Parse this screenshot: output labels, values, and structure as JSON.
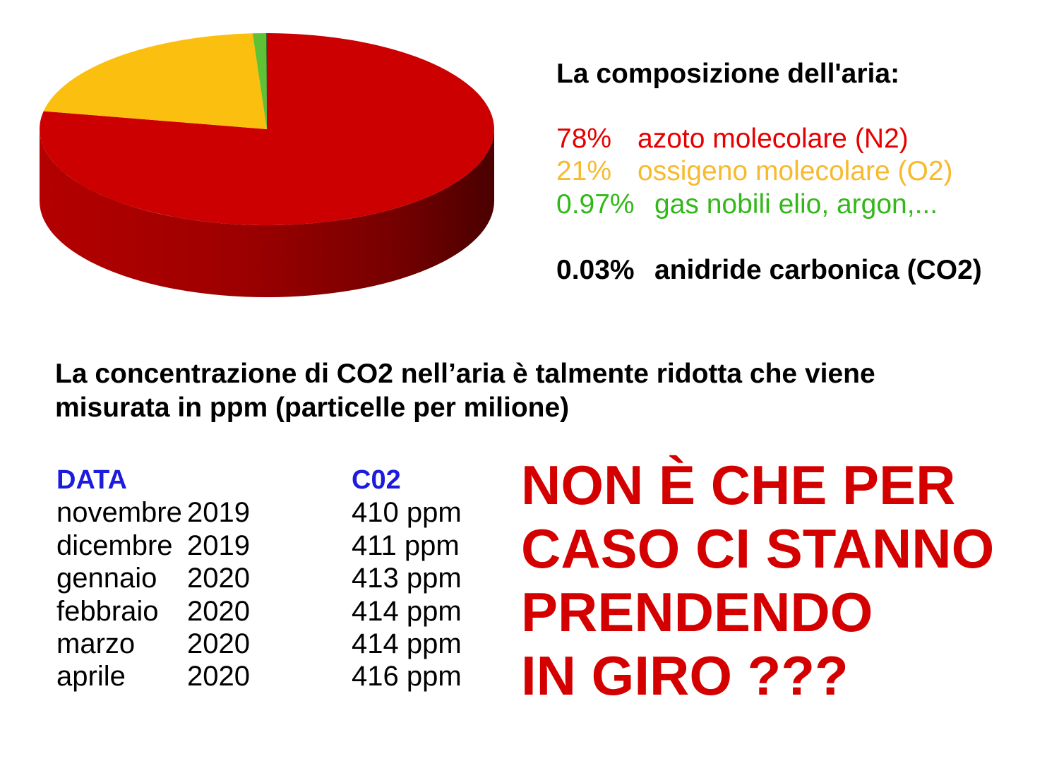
{
  "chart_data": {
    "type": "pie",
    "variant": "3d",
    "title": "La composizione dell'aria:",
    "categories": [
      "azoto molecolare (N2)",
      "ossigeno molecolare (O2)",
      "gas nobili elio, argon,...",
      "anidride carbonica (CO2)"
    ],
    "values": [
      78,
      21,
      0.97,
      0.03
    ],
    "value_labels": [
      "78%",
      "21%",
      "0.97%",
      "0.03%"
    ],
    "colors": [
      "#cc0000",
      "#fbbf10",
      "#5ec234",
      "#1a1a1a"
    ],
    "legend_colors": [
      "#e60000",
      "#f7b92e",
      "#33b81a",
      "#000000"
    ],
    "legend_position": "right"
  },
  "intro": {
    "lines": [
      "La concentrazione di CO2 nell’aria è talmente ridotta che viene",
      "misurata in ppm (particelle per milione)"
    ]
  },
  "co2_table": {
    "header_color": "#1c1cdc",
    "headers": {
      "date": "DATA",
      "value": "C02"
    },
    "rows": [
      {
        "month": "novembre",
        "year": "2019",
        "value": "410 ppm"
      },
      {
        "month": "dicembre",
        "year": "2019",
        "value": "411 ppm"
      },
      {
        "month": "gennaio",
        "year": "2020",
        "value": "413 ppm"
      },
      {
        "month": "febbraio",
        "year": "2020",
        "value": "414 ppm"
      },
      {
        "month": "marzo",
        "year": "2020",
        "value": "414 ppm"
      },
      {
        "month": "aprile",
        "year": "2020",
        "value": "416 ppm"
      }
    ]
  },
  "headline": {
    "color": "#d40000",
    "lines": [
      "NON È CHE PER",
      "CASO CI STANNO",
      "PRENDENDO",
      "IN GIRO ???"
    ]
  }
}
